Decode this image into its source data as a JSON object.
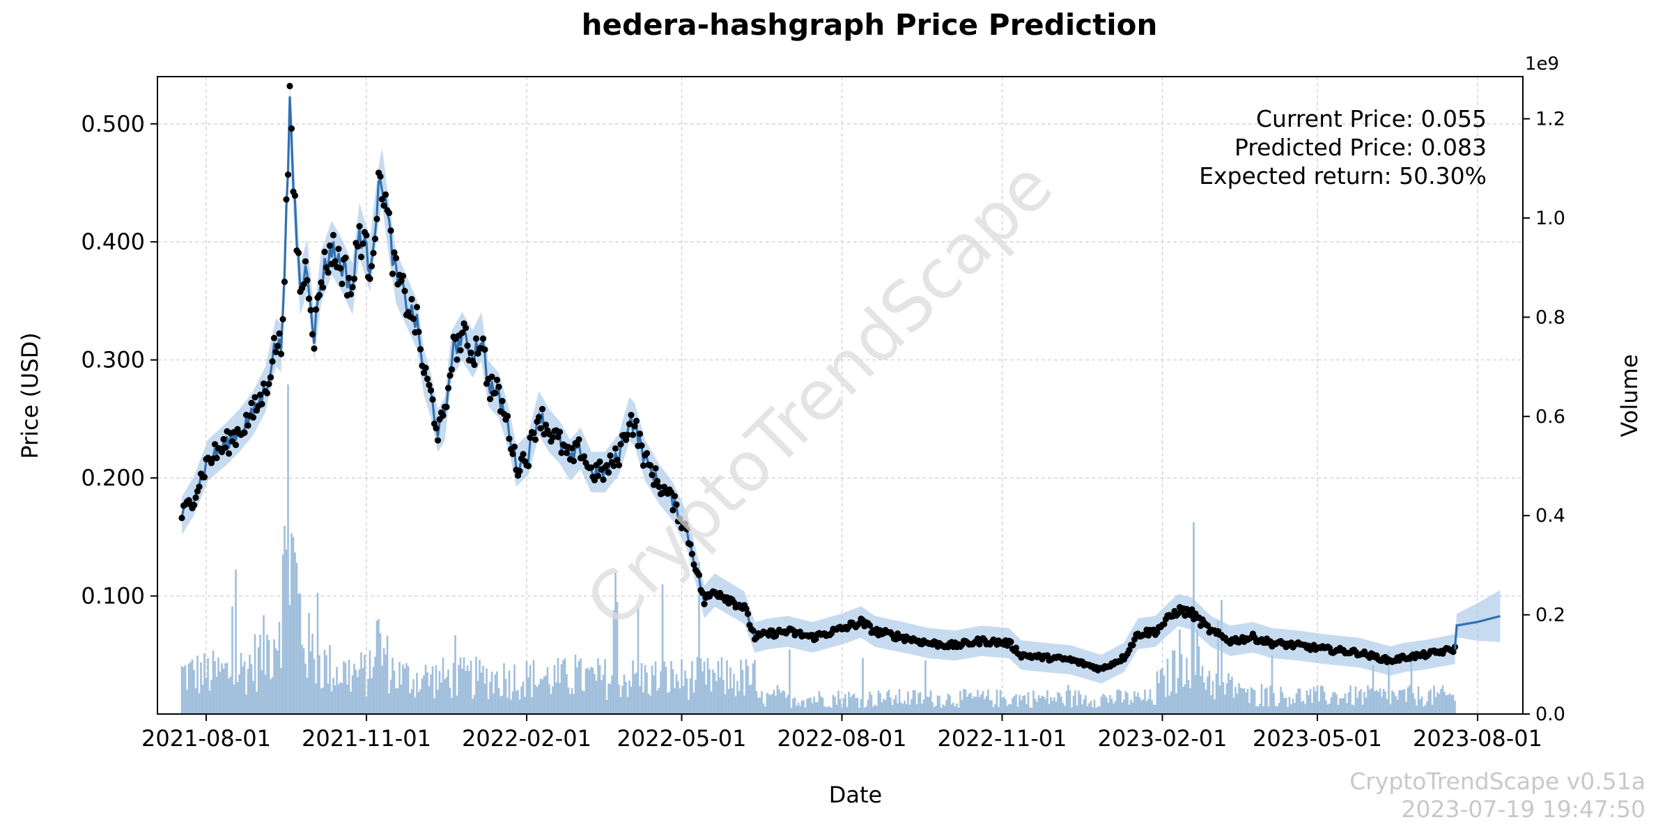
{
  "chart_data": {
    "type": "line",
    "title": "hedera-hashgraph Price Prediction",
    "xlabel": "Date",
    "ylabel": "Price (USD)",
    "y2label": "Volume",
    "y2_exponent_label": "1e9",
    "xlim": [
      "2021-07-04",
      "2023-08-27"
    ],
    "ylim": [
      0,
      0.54
    ],
    "y2lim": [
      0,
      1.285
    ],
    "x_ticks": [
      "2021-08-01",
      "2021-11-01",
      "2022-02-01",
      "2022-05-01",
      "2022-08-01",
      "2022-11-01",
      "2023-02-01",
      "2023-05-01",
      "2023-08-01"
    ],
    "y_ticks": [
      "0.100",
      "0.200",
      "0.300",
      "0.400",
      "0.500"
    ],
    "y2_ticks": [
      "0.0",
      "0.2",
      "0.4",
      "0.6",
      "0.8",
      "1.0",
      "1.2"
    ],
    "grid": true,
    "annotations": [
      "Current Price: 0.055",
      "Predicted Price: 0.083",
      "Expected return: 50.30%"
    ],
    "watermark": "CryptoTrendScape",
    "footer": [
      "CryptoTrendScape v0.51a",
      "2023-07-19 19:47:50"
    ],
    "colors": {
      "line": "#3070b0",
      "band": "#a8c8e8",
      "points": "#000000",
      "volume": "#a0bedb"
    },
    "price_keypoints": [
      [
        "2021-07-18",
        0.168
      ],
      [
        "2021-07-25",
        0.185
      ],
      [
        "2021-08-02",
        0.215
      ],
      [
        "2021-08-12",
        0.228
      ],
      [
        "2021-08-20",
        0.24
      ],
      [
        "2021-08-28",
        0.255
      ],
      [
        "2021-09-04",
        0.275
      ],
      [
        "2021-09-10",
        0.315
      ],
      [
        "2021-09-13",
        0.31
      ],
      [
        "2021-09-16",
        0.42
      ],
      [
        "2021-09-18",
        0.51
      ],
      [
        "2021-09-20",
        0.45
      ],
      [
        "2021-09-24",
        0.36
      ],
      [
        "2021-09-28",
        0.38
      ],
      [
        "2021-10-02",
        0.32
      ],
      [
        "2021-10-06",
        0.37
      ],
      [
        "2021-10-12",
        0.395
      ],
      [
        "2021-10-18",
        0.38
      ],
      [
        "2021-10-24",
        0.36
      ],
      [
        "2021-10-28",
        0.41
      ],
      [
        "2021-11-03",
        0.38
      ],
      [
        "2021-11-08",
        0.44
      ],
      [
        "2021-11-10",
        0.455
      ],
      [
        "2021-11-14",
        0.41
      ],
      [
        "2021-11-18",
        0.37
      ],
      [
        "2021-11-24",
        0.35
      ],
      [
        "2021-11-30",
        0.33
      ],
      [
        "2021-12-04",
        0.29
      ],
      [
        "2021-12-08",
        0.27
      ],
      [
        "2021-12-12",
        0.24
      ],
      [
        "2021-12-16",
        0.25
      ],
      [
        "2021-12-20",
        0.305
      ],
      [
        "2021-12-26",
        0.32
      ],
      [
        "2022-01-01",
        0.305
      ],
      [
        "2022-01-06",
        0.32
      ],
      [
        "2022-01-10",
        0.28
      ],
      [
        "2022-01-16",
        0.27
      ],
      [
        "2022-01-22",
        0.24
      ],
      [
        "2022-01-26",
        0.21
      ],
      [
        "2022-02-02",
        0.22
      ],
      [
        "2022-02-08",
        0.255
      ],
      [
        "2022-02-14",
        0.24
      ],
      [
        "2022-02-20",
        0.23
      ],
      [
        "2022-02-26",
        0.215
      ],
      [
        "2022-03-04",
        0.225
      ],
      [
        "2022-03-10",
        0.205
      ],
      [
        "2022-03-18",
        0.205
      ],
      [
        "2022-03-26",
        0.22
      ],
      [
        "2022-04-01",
        0.25
      ],
      [
        "2022-04-04",
        0.245
      ],
      [
        "2022-04-10",
        0.215
      ],
      [
        "2022-04-18",
        0.195
      ],
      [
        "2022-04-26",
        0.18
      ],
      [
        "2022-05-04",
        0.155
      ],
      [
        "2022-05-10",
        0.12
      ],
      [
        "2022-05-14",
        0.095
      ],
      [
        "2022-05-20",
        0.105
      ],
      [
        "2022-05-28",
        0.098
      ],
      [
        "2022-06-06",
        0.09
      ],
      [
        "2022-06-12",
        0.065
      ],
      [
        "2022-06-20",
        0.068
      ],
      [
        "2022-07-01",
        0.07
      ],
      [
        "2022-07-15",
        0.065
      ],
      [
        "2022-08-01",
        0.072
      ],
      [
        "2022-08-12",
        0.078
      ],
      [
        "2022-08-20",
        0.07
      ],
      [
        "2022-09-05",
        0.065
      ],
      [
        "2022-09-20",
        0.06
      ],
      [
        "2022-10-05",
        0.058
      ],
      [
        "2022-10-20",
        0.062
      ],
      [
        "2022-11-05",
        0.06
      ],
      [
        "2022-11-12",
        0.05
      ],
      [
        "2022-11-25",
        0.048
      ],
      [
        "2022-12-10",
        0.046
      ],
      [
        "2022-12-28",
        0.038
      ],
      [
        "2023-01-10",
        0.048
      ],
      [
        "2023-01-18",
        0.068
      ],
      [
        "2023-01-28",
        0.07
      ],
      [
        "2023-02-04",
        0.08
      ],
      [
        "2023-02-10",
        0.088
      ],
      [
        "2023-02-18",
        0.085
      ],
      [
        "2023-03-01",
        0.07
      ],
      [
        "2023-03-12",
        0.062
      ],
      [
        "2023-03-25",
        0.065
      ],
      [
        "2023-04-05",
        0.06
      ],
      [
        "2023-04-20",
        0.058
      ],
      [
        "2023-05-05",
        0.055
      ],
      [
        "2023-05-25",
        0.052
      ],
      [
        "2023-06-12",
        0.045
      ],
      [
        "2023-06-20",
        0.048
      ],
      [
        "2023-07-01",
        0.05
      ],
      [
        "2023-07-19",
        0.055
      ]
    ],
    "forecast": [
      [
        "2023-07-19",
        0.055
      ],
      [
        "2023-07-20",
        0.075
      ],
      [
        "2023-08-01",
        0.078
      ],
      [
        "2023-08-14",
        0.083
      ]
    ]
  }
}
